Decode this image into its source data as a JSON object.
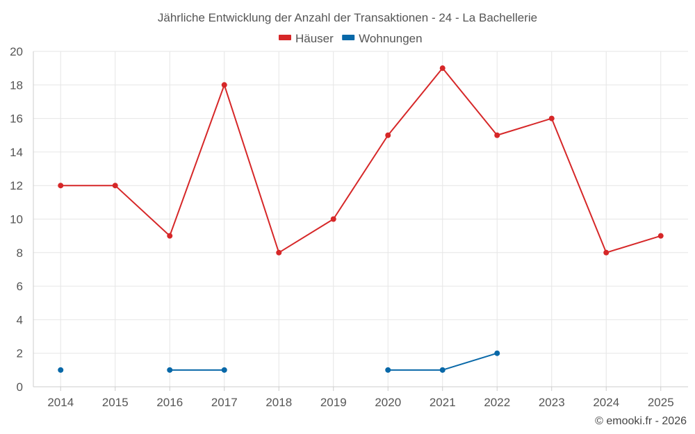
{
  "chart_data": {
    "type": "line",
    "title": "Jährliche Entwicklung der Anzahl der Transaktionen - 24 - La Bachellerie",
    "categories": [
      "2014",
      "2015",
      "2016",
      "2017",
      "2018",
      "2019",
      "2020",
      "2021",
      "2022",
      "2023",
      "2024",
      "2025"
    ],
    "ylim": [
      0,
      20
    ],
    "yticks": [
      0,
      2,
      4,
      6,
      8,
      10,
      12,
      14,
      16,
      18,
      20
    ],
    "grid": true,
    "legend_position": "top-center",
    "series": [
      {
        "name": "Häuser",
        "color": "#d62728",
        "values": [
          12,
          12,
          9,
          18,
          8,
          10,
          15,
          19,
          15,
          16,
          8,
          9
        ]
      },
      {
        "name": "Wohnungen",
        "color": "#0868a8",
        "values": [
          1,
          null,
          1,
          1,
          null,
          null,
          1,
          1,
          2,
          null,
          null,
          null
        ]
      }
    ]
  },
  "credit": "© emooki.fr - 2026"
}
